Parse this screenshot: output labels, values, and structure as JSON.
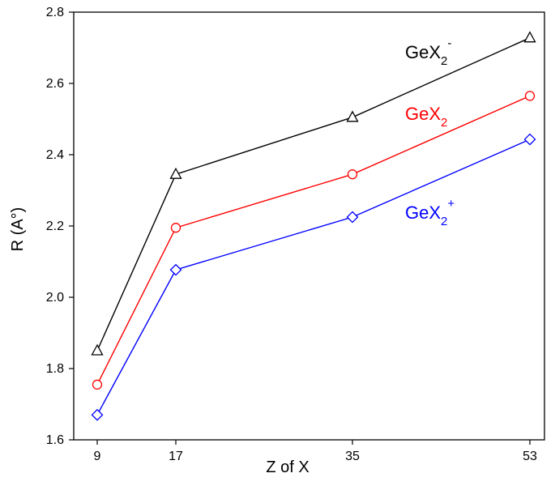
{
  "chart_data": {
    "type": "line",
    "x": [
      9,
      17,
      35,
      53
    ],
    "xlabel": "Z of X",
    "ylabel": "R (A°)",
    "xticks": [
      "9",
      "17",
      "35",
      "53"
    ],
    "yticks": [
      "1.6",
      "1.8",
      "2.0",
      "2.2",
      "2.4",
      "2.6",
      "2.8"
    ],
    "ylim": [
      1.6,
      2.8
    ],
    "grid": false,
    "legend": "inline labels",
    "series": [
      {
        "name": "GeX2-",
        "label_base": "GeX",
        "label_sub": "2",
        "label_sup": "-",
        "color": "#000000",
        "marker": "triangle",
        "values": [
          1.85,
          2.345,
          2.505,
          2.728
        ]
      },
      {
        "name": "GeX2",
        "label_base": "GeX",
        "label_sub": "2",
        "label_sup": "",
        "color": "#ff0000",
        "marker": "circle",
        "values": [
          1.755,
          2.195,
          2.345,
          2.565
        ]
      },
      {
        "name": "GeX2+",
        "label_base": "GeX",
        "label_sub": "2",
        "label_sup": "+",
        "color": "#0000ff",
        "marker": "diamond",
        "values": [
          1.67,
          2.077,
          2.225,
          2.443
        ]
      }
    ]
  }
}
